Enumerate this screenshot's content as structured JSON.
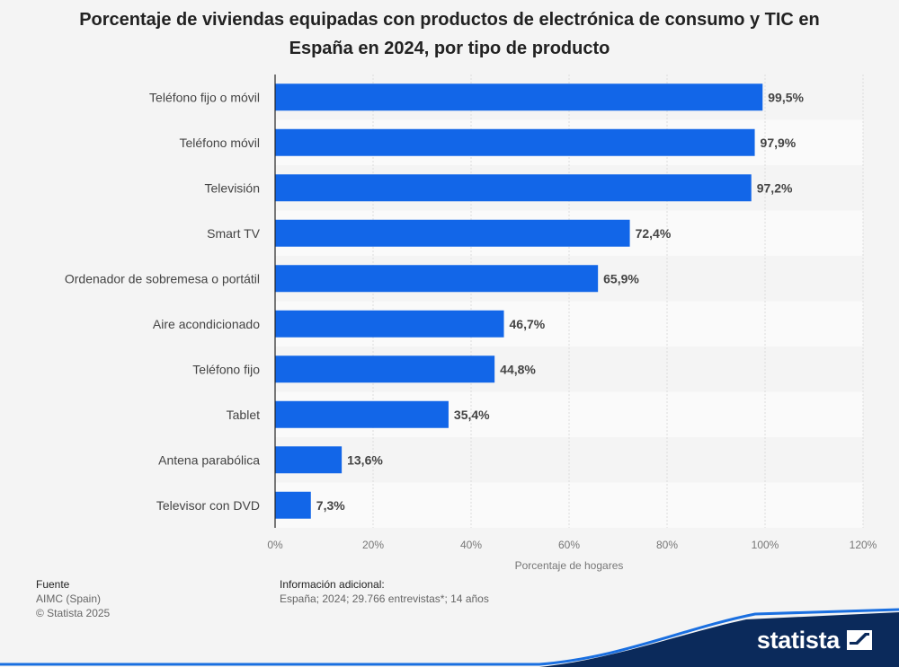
{
  "chart_data": {
    "type": "bar",
    "orientation": "horizontal",
    "title": "Porcentaje de viviendas equipadas con productos de electrónica de consumo y TIC en España en 2024, por tipo de producto",
    "categories": [
      "Teléfono fijo o móvil",
      "Teléfono móvil",
      "Televisión",
      "Smart TV",
      "Ordenador de sobremesa o portátil",
      "Aire acondicionado",
      "Teléfono fijo",
      "Tablet",
      "Antena parabólica",
      "Televisor con DVD"
    ],
    "values": [
      99.5,
      97.9,
      97.2,
      72.4,
      65.9,
      46.7,
      44.8,
      35.4,
      13.6,
      7.3
    ],
    "value_labels": [
      "99,5%",
      "97,9%",
      "97,2%",
      "72,4%",
      "65,9%",
      "46,7%",
      "44,8%",
      "35,4%",
      "13,6%",
      "7,3%"
    ],
    "xlim": [
      0,
      120
    ],
    "xticks": [
      0,
      20,
      40,
      60,
      80,
      100,
      120
    ],
    "xtick_labels": [
      "0%",
      "20%",
      "40%",
      "60%",
      "80%",
      "100%",
      "120%"
    ],
    "xlabel": "Porcentaje de hogares",
    "ylabel": "",
    "grid": true,
    "bar_color": "#1266e8"
  },
  "footer": {
    "source_heading": "Fuente",
    "source_lines": [
      "AIMC (Spain)",
      "© Statista 2025"
    ],
    "info_heading": "Información adicional:",
    "info_text": "España; 2024; 29.766 entrevistas*; 14 años"
  },
  "brand": {
    "name": "statista",
    "logo_icon": "statista-logo-icon",
    "wave_color": "#0b2a5b",
    "accent_color": "#1a6fe0"
  }
}
